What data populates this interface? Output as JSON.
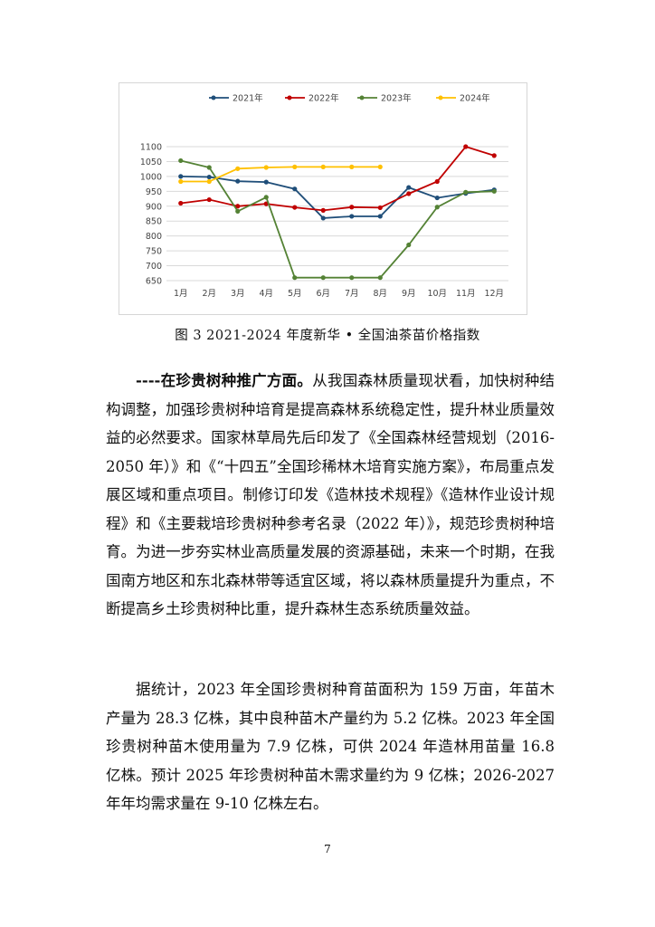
{
  "chart_data": {
    "type": "line",
    "categories": [
      "1月",
      "2月",
      "3月",
      "4月",
      "5月",
      "6月",
      "7月",
      "8月",
      "9月",
      "10月",
      "11月",
      "12月"
    ],
    "ylim": [
      650,
      1100
    ],
    "yticks": [
      1100,
      1050,
      1000,
      950,
      900,
      850,
      800,
      750,
      700,
      650
    ],
    "grid": true,
    "legend_position": "top",
    "series": [
      {
        "name": "2021年",
        "color": "#1f4e79",
        "values": [
          1000,
          998,
          984,
          981,
          958,
          860,
          866,
          866,
          963,
          928,
          943,
          955
        ]
      },
      {
        "name": "2022年",
        "color": "#c00000",
        "values": [
          910,
          922,
          900,
          908,
          896,
          886,
          897,
          895,
          942,
          983,
          1100,
          1070
        ]
      },
      {
        "name": "2023年",
        "color": "#548235",
        "values": [
          1053,
          1030,
          883,
          930,
          660,
          660,
          660,
          660,
          770,
          897,
          947,
          950
        ]
      },
      {
        "name": "2024年",
        "color": "#ffc000",
        "values": [
          983,
          983,
          1026,
          1030,
          1032,
          1032,
          1032,
          1032,
          null,
          null,
          null,
          null
        ]
      }
    ]
  },
  "caption": "图 3 2021-2024 年度新华 • 全国油茶苗价格指数",
  "section1": {
    "lead": "----在珍贵树种推广方面。",
    "body": "从我国森林质量现状看，加快树种结构调整，加强珍贵树种培育是提高森林系统稳定性，提升林业质量效益的必然要求。国家林草局先后印发了《全国森林经营规划（2016-2050 年）》和《“十四五”全国珍稀林木培育实施方案》，布局重点发展区域和重点项目。制修订印发《造林技术规程》《造林作业设计规程》和《主要栽培珍贵树种参考名录（2022 年）》，规范珍贵树种培育。为进一步夯实林业高质量发展的资源基础，未来一个时期，在我国南方地区和东北森林带等适宜区域，将以森林质量提升为重点，不断提高乡土珍贵树种比重，提升森林生态系统质量效益。"
  },
  "section2": {
    "body": "据统计，2023 年全国珍贵树种育苗面积为 159 万亩，年苗木产量为 28.3 亿株，其中良种苗木产量约为 5.2 亿株。2023 年全国珍贵树种苗木使用量为 7.9 亿株，可供 2024 年造林用苗量 16.8 亿株。预计 2025 年珍贵树种苗木需求量约为 9 亿株；2026-2027 年年均需求量在 9-10 亿株左右。"
  },
  "page_number": "7"
}
